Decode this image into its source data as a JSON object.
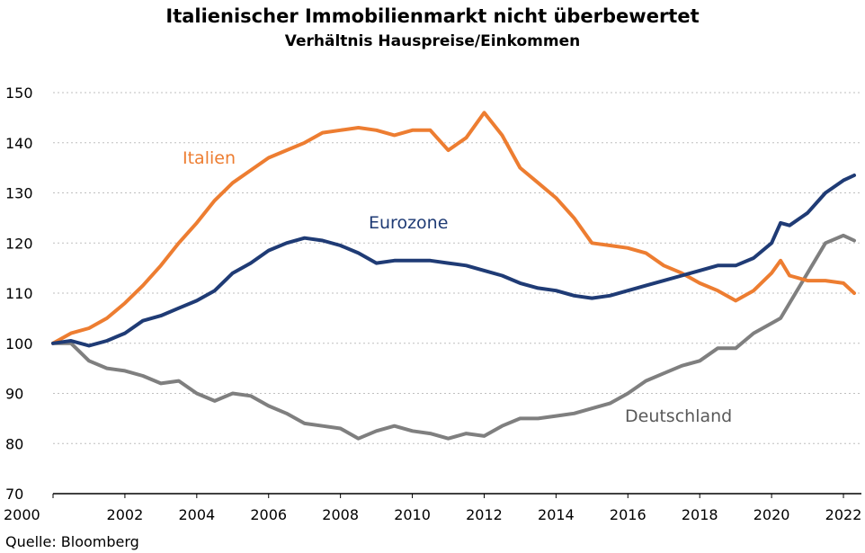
{
  "chart_data": {
    "type": "line",
    "title": "Italienischer Immobilienmarkt nicht überbewertet",
    "subtitle": "Verhältnis Hauspreise/Einkommen",
    "source": "Quelle: Bloomberg",
    "xlim": [
      2000,
      2022.5
    ],
    "ylim": [
      70,
      150
    ],
    "yticks": [
      70,
      80,
      90,
      100,
      110,
      120,
      130,
      140,
      150
    ],
    "xticks": [
      2000,
      2002,
      2004,
      2006,
      2008,
      2010,
      2012,
      2014,
      2016,
      2018,
      2020,
      2022
    ],
    "grid": true,
    "series": [
      {
        "name": "Italien",
        "color": "#ed7d31",
        "x": [
          2000,
          2000.5,
          2001,
          2001.5,
          2002,
          2002.5,
          2003,
          2003.5,
          2004,
          2004.5,
          2005,
          2005.5,
          2006,
          2006.5,
          2007,
          2007.5,
          2008,
          2008.5,
          2009,
          2009.5,
          2010,
          2010.5,
          2011,
          2011.5,
          2012,
          2012.5,
          2013,
          2013.5,
          2014,
          2014.5,
          2015,
          2015.5,
          2016,
          2016.5,
          2017,
          2017.5,
          2018,
          2018.5,
          2019,
          2019.5,
          2020,
          2020.25,
          2020.5,
          2021,
          2021.5,
          2022,
          2022.3
        ],
        "values": [
          100,
          102,
          103,
          105,
          108,
          111.5,
          115.5,
          120,
          124,
          128.5,
          132,
          134.5,
          137,
          138.5,
          140,
          142,
          142.5,
          143,
          142.5,
          141.5,
          142.5,
          142.5,
          138.5,
          141,
          146,
          141.5,
          135,
          132,
          129,
          125,
          120,
          119.5,
          119,
          118,
          115.5,
          114,
          112,
          110.5,
          108.5,
          110.5,
          114,
          116.5,
          113.5,
          112.5,
          112.5,
          112,
          110
        ]
      },
      {
        "name": "Eurozone",
        "color": "#1f3b75",
        "x": [
          2000,
          2000.5,
          2001,
          2001.5,
          2002,
          2002.5,
          2003,
          2003.5,
          2004,
          2004.5,
          2005,
          2005.5,
          2006,
          2006.5,
          2007,
          2007.5,
          2008,
          2008.5,
          2009,
          2009.5,
          2010,
          2010.5,
          2011,
          2011.5,
          2012,
          2012.5,
          2013,
          2013.5,
          2014,
          2014.5,
          2015,
          2015.5,
          2016,
          2016.5,
          2017,
          2017.5,
          2018,
          2018.5,
          2019,
          2019.5,
          2020,
          2020.25,
          2020.5,
          2021,
          2021.5,
          2022,
          2022.3
        ],
        "values": [
          100,
          100.5,
          99.5,
          100.5,
          102,
          104.5,
          105.5,
          107,
          108.5,
          110.5,
          114,
          116,
          118.5,
          120,
          121,
          120.5,
          119.5,
          118,
          116,
          116.5,
          116.5,
          116.5,
          116,
          115.5,
          114.5,
          113.5,
          112,
          111,
          110.5,
          109.5,
          109,
          109.5,
          110.5,
          111.5,
          112.5,
          113.5,
          114.5,
          115.5,
          115.5,
          117,
          120,
          124,
          123.5,
          126,
          130,
          132.5,
          133.5
        ]
      },
      {
        "name": "Deutschland",
        "color": "#7f7f7f",
        "x": [
          2000,
          2000.5,
          2001,
          2001.5,
          2002,
          2002.5,
          2003,
          2003.5,
          2004,
          2004.5,
          2005,
          2005.5,
          2006,
          2006.5,
          2007,
          2007.5,
          2008,
          2008.5,
          2009,
          2009.5,
          2010,
          2010.5,
          2011,
          2011.5,
          2012,
          2012.5,
          2013,
          2013.5,
          2014,
          2014.5,
          2015,
          2015.5,
          2016,
          2016.5,
          2017,
          2017.5,
          2018,
          2018.5,
          2019,
          2019.5,
          2020,
          2020.25,
          2020.5,
          2021,
          2021.5,
          2022,
          2022.3
        ],
        "values": [
          100,
          100,
          96.5,
          95,
          94.5,
          93.5,
          92,
          92.5,
          90,
          88.5,
          90,
          89.5,
          87.5,
          86,
          84,
          83.5,
          83,
          81,
          82.5,
          83.5,
          82.5,
          82,
          81,
          82,
          81.5,
          83.5,
          85,
          85,
          85.5,
          86,
          87,
          88,
          90,
          92.5,
          94,
          95.5,
          96.5,
          99,
          99,
          102,
          104,
          105,
          108,
          114,
          120,
          121.5,
          120.5
        ]
      }
    ]
  }
}
